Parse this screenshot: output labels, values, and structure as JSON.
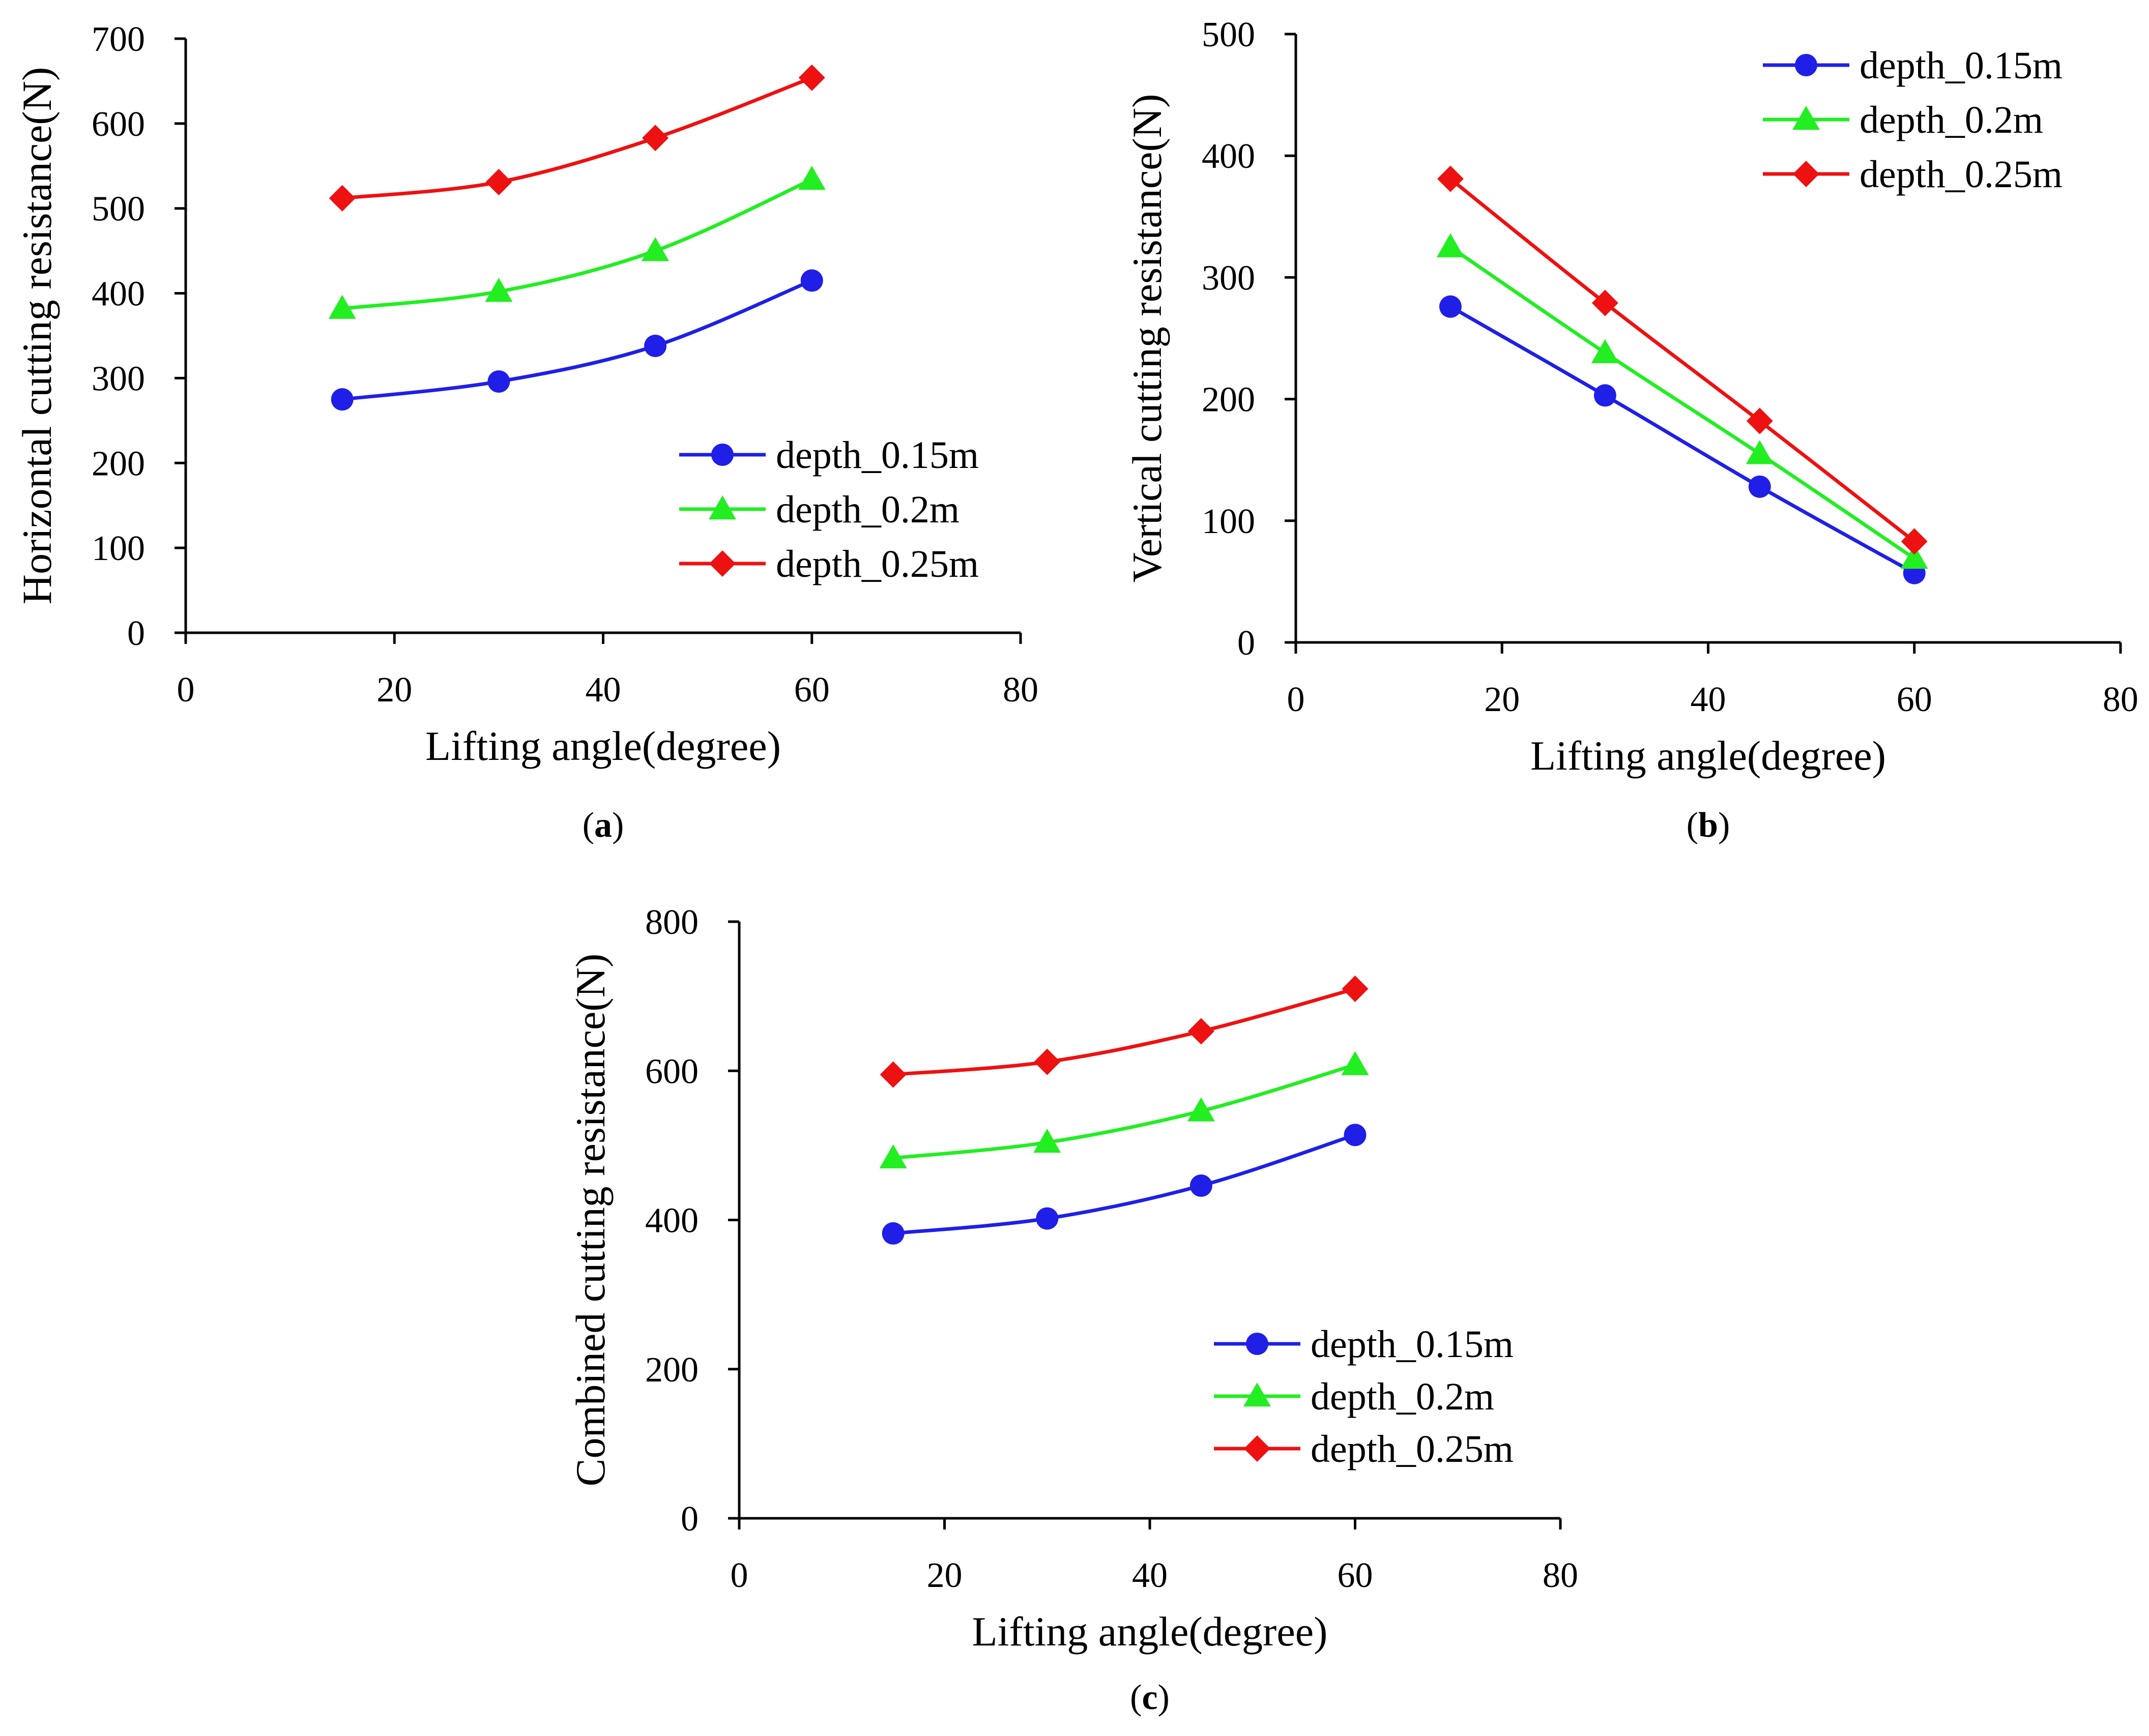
{
  "chart_data": [
    {
      "id": "a",
      "type": "line",
      "panel_label": "a",
      "xlabel": "Lifting angle(degree)",
      "ylabel": "Horizontal cutting resistance(N)",
      "xlim": [
        0,
        80
      ],
      "ylim": [
        0,
        700
      ],
      "xticks": [
        0,
        20,
        40,
        60,
        80
      ],
      "yticks": [
        0,
        100,
        200,
        300,
        400,
        500,
        600,
        700
      ],
      "legend_position": "bottom-right",
      "x": [
        15,
        30,
        45,
        60
      ],
      "series": [
        {
          "name": "depth_0.15m",
          "color": "#1f1fe8",
          "marker": "circle",
          "values": [
            275,
            296,
            338,
            415
          ]
        },
        {
          "name": "depth_0.2m",
          "color": "#22ee22",
          "marker": "triangle",
          "values": [
            382,
            402,
            450,
            534
          ]
        },
        {
          "name": "depth_0.25m",
          "color": "#ee1111",
          "marker": "diamond",
          "values": [
            512,
            531,
            583,
            654
          ]
        }
      ]
    },
    {
      "id": "b",
      "type": "line",
      "panel_label": "b",
      "xlabel": "Lifting angle(degree)",
      "ylabel": "Vertical cutting resistance(N)",
      "xlim": [
        0,
        80
      ],
      "ylim": [
        0,
        500
      ],
      "xticks": [
        0,
        20,
        40,
        60,
        80
      ],
      "yticks": [
        0,
        100,
        200,
        300,
        400,
        500
      ],
      "legend_position": "top-right",
      "x": [
        15,
        30,
        45,
        60
      ],
      "series": [
        {
          "name": "depth_0.15m",
          "color": "#1f1fe8",
          "marker": "circle",
          "values": [
            276,
            203,
            128,
            57
          ]
        },
        {
          "name": "depth_0.2m",
          "color": "#22ee22",
          "marker": "triangle",
          "values": [
            325,
            238,
            155,
            69
          ]
        },
        {
          "name": "depth_0.25m",
          "color": "#ee1111",
          "marker": "diamond",
          "values": [
            381,
            279,
            182,
            83
          ]
        }
      ]
    },
    {
      "id": "c",
      "type": "line",
      "panel_label": "c",
      "xlabel": "Lifting angle(degree)",
      "ylabel": "Combined cutting resistance(N)",
      "xlim": [
        0,
        80
      ],
      "ylim": [
        0,
        800
      ],
      "xticks": [
        0,
        20,
        40,
        60,
        80
      ],
      "yticks": [
        0,
        200,
        400,
        600,
        800
      ],
      "legend_position": "bottom-right",
      "x": [
        15,
        30,
        45,
        60
      ],
      "series": [
        {
          "name": "depth_0.15m",
          "color": "#1f1fe8",
          "marker": "circle",
          "values": [
            382,
            402,
            446,
            514
          ]
        },
        {
          "name": "depth_0.2m",
          "color": "#22ee22",
          "marker": "triangle",
          "values": [
            483,
            504,
            546,
            608
          ]
        },
        {
          "name": "depth_0.25m",
          "color": "#ee1111",
          "marker": "diamond",
          "values": [
            595,
            612,
            653,
            710
          ]
        }
      ]
    }
  ]
}
